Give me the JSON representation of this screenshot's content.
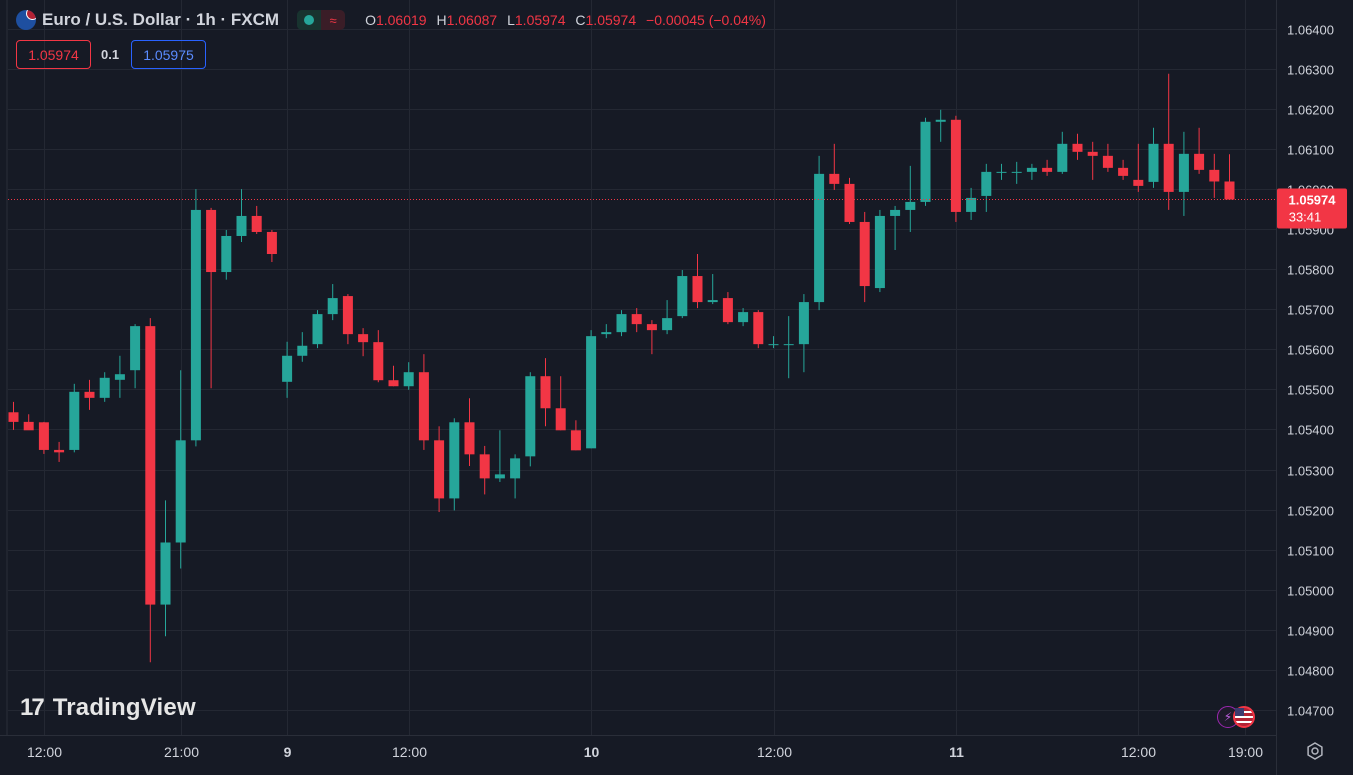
{
  "legend": {
    "symbol": "Euro / U.S. Dollar · 1h · FXCM",
    "approx_icon": "≈",
    "open_label": "O",
    "open": "1.06019",
    "high_label": "H",
    "high": "1.06087",
    "low_label": "L",
    "low": "1.05974",
    "close_label": "C",
    "close": "1.05974",
    "change": "−0.00045 (−0.04%)"
  },
  "trade": {
    "bid": "1.05974",
    "spread": "0.1",
    "ask": "1.05975"
  },
  "price_tag": {
    "price": "1.05974",
    "countdown": "33:41"
  },
  "watermark": {
    "logo": "17",
    "text": "TradingView"
  },
  "icons": {
    "flag": "eur-usd-flag-icon",
    "lightning": "lightning-icon",
    "us_flag": "us-flag-icon",
    "settings": "settings-gear-icon"
  },
  "colors": {
    "up": "#26a69a",
    "down": "#f23645",
    "background": "#161a25",
    "grid": "#242833",
    "text": "#d1d4dc"
  },
  "chart_data": {
    "type": "candlestick",
    "title": "",
    "xlabel": "",
    "ylabel": "",
    "ylim": [
      1.04645,
      1.06452
    ],
    "y_ticks": [
      "1.04700",
      "1.04800",
      "1.04900",
      "1.05000",
      "1.05100",
      "1.05200",
      "1.05300",
      "1.05400",
      "1.05500",
      "1.05600",
      "1.05700",
      "1.05800",
      "1.05900",
      "1.06000",
      "1.06100",
      "1.06200",
      "1.06300",
      "1.06400"
    ],
    "x_ticks": [
      {
        "label": "12:00",
        "index": 2,
        "bold": false
      },
      {
        "label": "21:00",
        "index": 11,
        "bold": false
      },
      {
        "label": "9",
        "index": 18,
        "bold": true
      },
      {
        "label": "12:00",
        "index": 26,
        "bold": false
      },
      {
        "label": "10",
        "index": 38,
        "bold": true
      },
      {
        "label": "12:00",
        "index": 50,
        "bold": false
      },
      {
        "label": "11",
        "index": 62,
        "bold": true
      },
      {
        "label": "12:00",
        "index": 74,
        "bold": false
      },
      {
        "label": "19:00",
        "index": 81,
        "bold": false
      }
    ],
    "current_price": 1.05974,
    "candles": [
      {
        "o": 1.05443,
        "h": 1.05469,
        "l": 1.05399,
        "c": 1.05419
      },
      {
        "o": 1.05419,
        "h": 1.05438,
        "l": 1.05399,
        "c": 1.05398
      },
      {
        "o": 1.05418,
        "h": 1.05419,
        "l": 1.05339,
        "c": 1.05349
      },
      {
        "o": 1.05349,
        "h": 1.05369,
        "l": 1.05319,
        "c": 1.05343
      },
      {
        "o": 1.05349,
        "h": 1.05514,
        "l": 1.05343,
        "c": 1.05494
      },
      {
        "o": 1.05494,
        "h": 1.05524,
        "l": 1.05449,
        "c": 1.05479
      },
      {
        "o": 1.05479,
        "h": 1.05543,
        "l": 1.05469,
        "c": 1.05529
      },
      {
        "o": 1.05524,
        "h": 1.05584,
        "l": 1.05479,
        "c": 1.05538
      },
      {
        "o": 1.05548,
        "h": 1.05663,
        "l": 1.05503,
        "c": 1.05658
      },
      {
        "o": 1.05658,
        "h": 1.05678,
        "l": 1.04819,
        "c": 1.04963
      },
      {
        "o": 1.04963,
        "h": 1.05223,
        "l": 1.04884,
        "c": 1.05118
      },
      {
        "o": 1.05118,
        "h": 1.05548,
        "l": 1.05053,
        "c": 1.05373
      },
      {
        "o": 1.05373,
        "h": 1.06,
        "l": 1.05358,
        "c": 1.05948
      },
      {
        "o": 1.05948,
        "h": 1.05953,
        "l": 1.05503,
        "c": 1.05793
      },
      {
        "o": 1.05793,
        "h": 1.05898,
        "l": 1.05774,
        "c": 1.05883
      },
      {
        "o": 1.05883,
        "h": 1.06,
        "l": 1.05868,
        "c": 1.05933
      },
      {
        "o": 1.05933,
        "h": 1.05958,
        "l": 1.05888,
        "c": 1.05893
      },
      {
        "o": 1.05893,
        "h": 1.05898,
        "l": 1.05818,
        "c": 1.05838
      },
      {
        "o": 1.05519,
        "h": 1.05619,
        "l": 1.05479,
        "c": 1.05584
      },
      {
        "o": 1.05584,
        "h": 1.05643,
        "l": 1.05569,
        "c": 1.05609
      },
      {
        "o": 1.05613,
        "h": 1.05698,
        "l": 1.05603,
        "c": 1.05688
      },
      {
        "o": 1.05688,
        "h": 1.05763,
        "l": 1.05673,
        "c": 1.05728
      },
      {
        "o": 1.05733,
        "h": 1.05738,
        "l": 1.05613,
        "c": 1.05638
      },
      {
        "o": 1.05638,
        "h": 1.05653,
        "l": 1.05583,
        "c": 1.05618
      },
      {
        "o": 1.05618,
        "h": 1.05648,
        "l": 1.05518,
        "c": 1.05523
      },
      {
        "o": 1.05523,
        "h": 1.05559,
        "l": 1.05508,
        "c": 1.05508
      },
      {
        "o": 1.05508,
        "h": 1.05568,
        "l": 1.05499,
        "c": 1.05543
      },
      {
        "o": 1.05543,
        "h": 1.05588,
        "l": 1.05349,
        "c": 1.05373
      },
      {
        "o": 1.05373,
        "h": 1.05408,
        "l": 1.05194,
        "c": 1.05228
      },
      {
        "o": 1.05228,
        "h": 1.05428,
        "l": 1.05198,
        "c": 1.05418
      },
      {
        "o": 1.05418,
        "h": 1.05478,
        "l": 1.05309,
        "c": 1.05338
      },
      {
        "o": 1.05338,
        "h": 1.05359,
        "l": 1.05238,
        "c": 1.05278
      },
      {
        "o": 1.05278,
        "h": 1.05398,
        "l": 1.05269,
        "c": 1.05288
      },
      {
        "o": 1.05278,
        "h": 1.05338,
        "l": 1.05228,
        "c": 1.05328
      },
      {
        "o": 1.05333,
        "h": 1.05543,
        "l": 1.05308,
        "c": 1.05533
      },
      {
        "o": 1.05533,
        "h": 1.05578,
        "l": 1.05408,
        "c": 1.05453
      },
      {
        "o": 1.05453,
        "h": 1.05533,
        "l": 1.05398,
        "c": 1.05398
      },
      {
        "o": 1.05398,
        "h": 1.05423,
        "l": 1.05348,
        "c": 1.05348
      },
      {
        "o": 1.05353,
        "h": 1.05648,
        "l": 1.05353,
        "c": 1.05633
      },
      {
        "o": 1.05638,
        "h": 1.05663,
        "l": 1.05628,
        "c": 1.05643
      },
      {
        "o": 1.05643,
        "h": 1.05698,
        "l": 1.05633,
        "c": 1.05688
      },
      {
        "o": 1.05688,
        "h": 1.05703,
        "l": 1.05643,
        "c": 1.05663
      },
      {
        "o": 1.05663,
        "h": 1.05673,
        "l": 1.05588,
        "c": 1.05648
      },
      {
        "o": 1.05648,
        "h": 1.05723,
        "l": 1.05638,
        "c": 1.05678
      },
      {
        "o": 1.05683,
        "h": 1.05798,
        "l": 1.05678,
        "c": 1.05783
      },
      {
        "o": 1.05783,
        "h": 1.05838,
        "l": 1.05703,
        "c": 1.05718
      },
      {
        "o": 1.05718,
        "h": 1.05788,
        "l": 1.05713,
        "c": 1.05723
      },
      {
        "o": 1.05728,
        "h": 1.05743,
        "l": 1.05663,
        "c": 1.05668
      },
      {
        "o": 1.05668,
        "h": 1.05703,
        "l": 1.05658,
        "c": 1.05693
      },
      {
        "o": 1.05693,
        "h": 1.05698,
        "l": 1.05603,
        "c": 1.05613
      },
      {
        "o": 1.05613,
        "h": 1.05633,
        "l": 1.05603,
        "c": 1.05613
      },
      {
        "o": 1.05613,
        "h": 1.05683,
        "l": 1.05528,
        "c": 1.05613
      },
      {
        "o": 1.05613,
        "h": 1.05738,
        "l": 1.05543,
        "c": 1.05718
      },
      {
        "o": 1.05718,
        "h": 1.06083,
        "l": 1.05698,
        "c": 1.06038
      },
      {
        "o": 1.06038,
        "h": 1.06113,
        "l": 1.05998,
        "c": 1.06013
      },
      {
        "o": 1.06013,
        "h": 1.06028,
        "l": 1.05913,
        "c": 1.05918
      },
      {
        "o": 1.05918,
        "h": 1.05943,
        "l": 1.05718,
        "c": 1.05758
      },
      {
        "o": 1.05753,
        "h": 1.05948,
        "l": 1.05743,
        "c": 1.05933
      },
      {
        "o": 1.05933,
        "h": 1.05958,
        "l": 1.05848,
        "c": 1.05948
      },
      {
        "o": 1.05948,
        "h": 1.06058,
        "l": 1.05893,
        "c": 1.05968
      },
      {
        "o": 1.05968,
        "h": 1.06178,
        "l": 1.05958,
        "c": 1.06168
      },
      {
        "o": 1.06168,
        "h": 1.06198,
        "l": 1.06118,
        "c": 1.06173
      },
      {
        "o": 1.06173,
        "h": 1.06183,
        "l": 1.05918,
        "c": 1.05943
      },
      {
        "o": 1.05943,
        "h": 1.06003,
        "l": 1.05923,
        "c": 1.05978
      },
      {
        "o": 1.05983,
        "h": 1.06063,
        "l": 1.05943,
        "c": 1.06043
      },
      {
        "o": 1.06043,
        "h": 1.06063,
        "l": 1.06023,
        "c": 1.06043
      },
      {
        "o": 1.06043,
        "h": 1.06068,
        "l": 1.06013,
        "c": 1.06043
      },
      {
        "o": 1.06043,
        "h": 1.06063,
        "l": 1.06023,
        "c": 1.06053
      },
      {
        "o": 1.06053,
        "h": 1.06073,
        "l": 1.06033,
        "c": 1.06043
      },
      {
        "o": 1.06043,
        "h": 1.06143,
        "l": 1.06038,
        "c": 1.06113
      },
      {
        "o": 1.06113,
        "h": 1.06138,
        "l": 1.06073,
        "c": 1.06093
      },
      {
        "o": 1.06093,
        "h": 1.06118,
        "l": 1.06023,
        "c": 1.06083
      },
      {
        "o": 1.06083,
        "h": 1.06113,
        "l": 1.06043,
        "c": 1.06053
      },
      {
        "o": 1.06053,
        "h": 1.06073,
        "l": 1.06023,
        "c": 1.06033
      },
      {
        "o": 1.06023,
        "h": 1.06113,
        "l": 1.05993,
        "c": 1.06008
      },
      {
        "o": 1.06018,
        "h": 1.06153,
        "l": 1.06003,
        "c": 1.06113
      },
      {
        "o": 1.06113,
        "h": 1.06288,
        "l": 1.05948,
        "c": 1.05993
      },
      {
        "o": 1.05993,
        "h": 1.06143,
        "l": 1.05933,
        "c": 1.06088
      },
      {
        "o": 1.06088,
        "h": 1.06153,
        "l": 1.06038,
        "c": 1.06048
      },
      {
        "o": 1.06048,
        "h": 1.06088,
        "l": 1.05978,
        "c": 1.06019
      },
      {
        "o": 1.06019,
        "h": 1.06087,
        "l": 1.05974,
        "c": 1.05974
      }
    ]
  }
}
